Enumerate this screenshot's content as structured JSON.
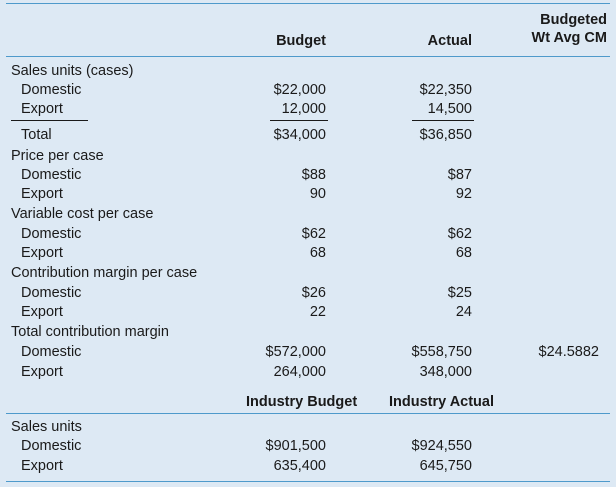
{
  "headers": {
    "budget": "Budget",
    "actual": "Actual",
    "wt_avg_line1": "Budgeted",
    "wt_avg_line2": "Wt Avg CM",
    "industry_budget": "Industry Budget",
    "industry_actual": "Industry Actual"
  },
  "sections": {
    "sales_units": {
      "title": "Sales units (cases)",
      "domestic": {
        "label": "Domestic",
        "budget": "$22,000",
        "actual": "$22,350"
      },
      "export": {
        "label": "Export",
        "budget": "12,000",
        "actual": "14,500"
      },
      "total": {
        "label": "Total",
        "budget": "$34,000",
        "actual": "$36,850"
      }
    },
    "price": {
      "title": "Price per case",
      "domestic": {
        "label": "Domestic",
        "budget": "$88",
        "actual": "$87"
      },
      "export": {
        "label": "Export",
        "budget": "90",
        "actual": "92"
      }
    },
    "variable_cost": {
      "title": "Variable cost per case",
      "domestic": {
        "label": "Domestic",
        "budget": "$62",
        "actual": "$62"
      },
      "export": {
        "label": "Export",
        "budget": "68",
        "actual": "68"
      }
    },
    "cm_per_case": {
      "title": "Contribution margin per case",
      "domestic": {
        "label": "Domestic",
        "budget": "$26",
        "actual": "$25"
      },
      "export": {
        "label": "Export",
        "budget": "22",
        "actual": "24"
      }
    },
    "total_cm": {
      "title": "Total contribution margin",
      "domestic": {
        "label": "Domestic",
        "budget": "$572,000",
        "actual": "$558,750",
        "wt_avg": "$24.5882"
      },
      "export": {
        "label": "Export",
        "budget": "264,000",
        "actual": "348,000"
      }
    },
    "industry_sales": {
      "title": "Sales units",
      "domestic": {
        "label": "Domestic",
        "budget": "$901,500",
        "actual": "$924,550"
      },
      "export": {
        "label": "Export",
        "budget": "635,400",
        "actual": "645,750"
      }
    }
  }
}
